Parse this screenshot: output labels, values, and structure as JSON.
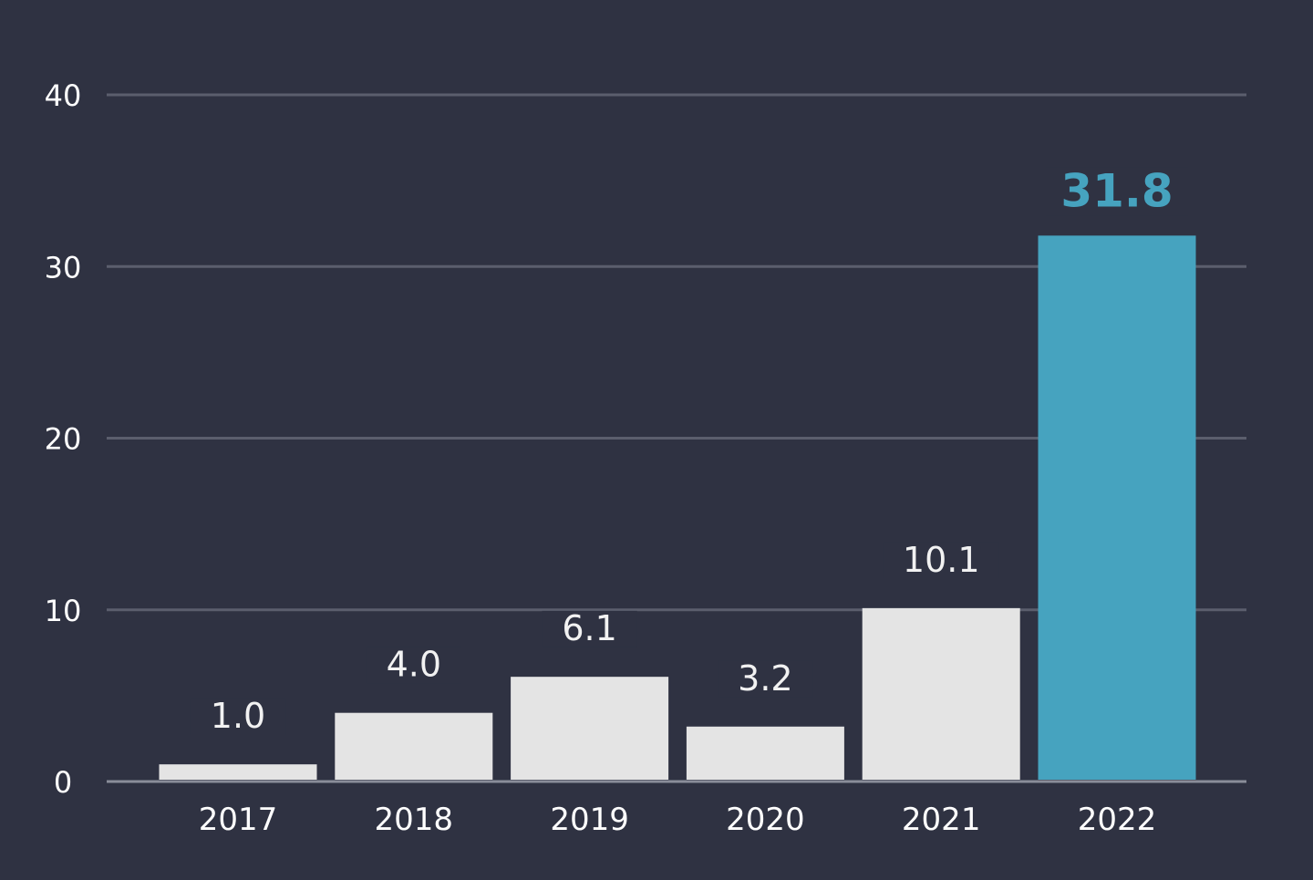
{
  "colors": {
    "background": "#2f3242",
    "bar": "#e4e4e4",
    "highlight_bar": "#46a3bf",
    "gridline": "#5b5e6d",
    "baseline": "#8a8d99",
    "text": "#ffffff",
    "value_label": "#f2f2f2"
  },
  "chart_data": {
    "type": "bar",
    "title": "",
    "xlabel": "",
    "ylabel": "",
    "categories": [
      "2017",
      "2018",
      "2019",
      "2020",
      "2021",
      "2022"
    ],
    "values": [
      1.0,
      4.0,
      6.1,
      3.2,
      10.1,
      31.8
    ],
    "value_labels": [
      "1.0",
      "4.0",
      "6.1",
      "3.2",
      "10.1",
      "31.8"
    ],
    "highlight_category": "2022",
    "ylim": [
      0,
      40
    ],
    "yticks": [
      0,
      10,
      20,
      30,
      40
    ],
    "ytick_labels": [
      "0",
      "10",
      "20",
      "30",
      "40"
    ],
    "grid": true,
    "legend": "none"
  }
}
